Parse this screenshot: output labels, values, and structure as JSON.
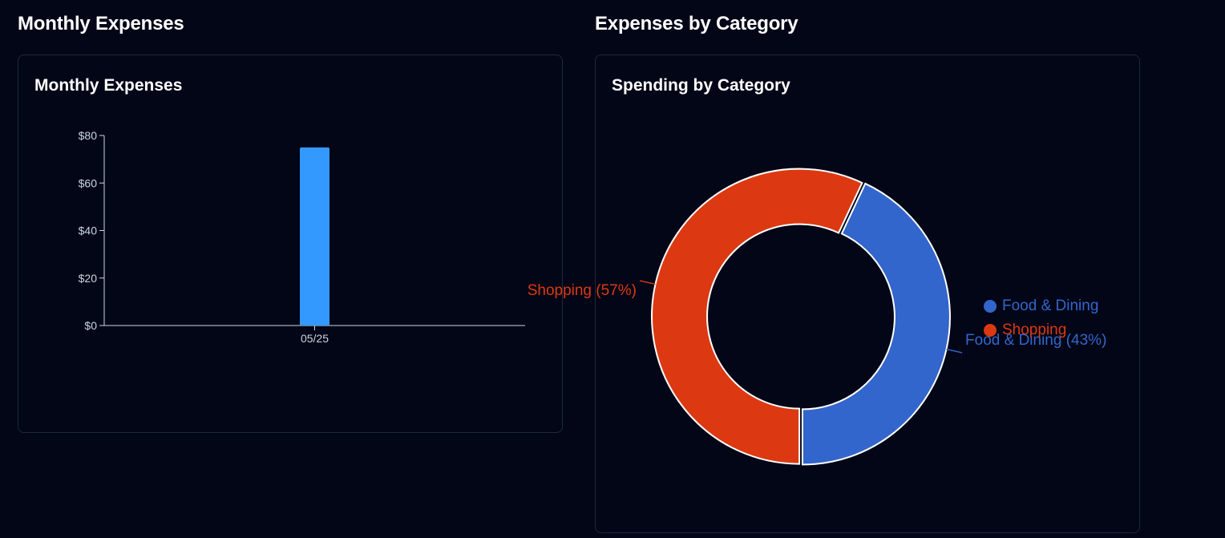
{
  "left_panel": {
    "section_title": "Monthly Expenses",
    "card_title": "Monthly Expenses"
  },
  "right_panel": {
    "section_title": "Expenses by Category",
    "card_title": "Spending by Category"
  },
  "chart_data": [
    {
      "type": "bar",
      "title": "Monthly Expenses",
      "categories": [
        "05/25"
      ],
      "values": [
        75
      ],
      "ylim": [
        0,
        80
      ],
      "yticks": [
        0,
        20,
        40,
        60,
        80
      ],
      "ytick_labels": [
        "$0",
        "$20",
        "$40",
        "$60",
        "$80"
      ],
      "grid": false,
      "bar_color": "#3399ff"
    },
    {
      "type": "pie",
      "donut": true,
      "title": "Spending by Category",
      "slices": [
        {
          "name": "Food & Dining",
          "percent": 43,
          "label": "Food & Dining (43%)",
          "color": "#3366cc"
        },
        {
          "name": "Shopping",
          "percent": 57,
          "label": "Shopping (57%)",
          "color": "#dc3912"
        }
      ],
      "legend": [
        "Food & Dining",
        "Shopping"
      ],
      "legend_position": "right"
    }
  ]
}
